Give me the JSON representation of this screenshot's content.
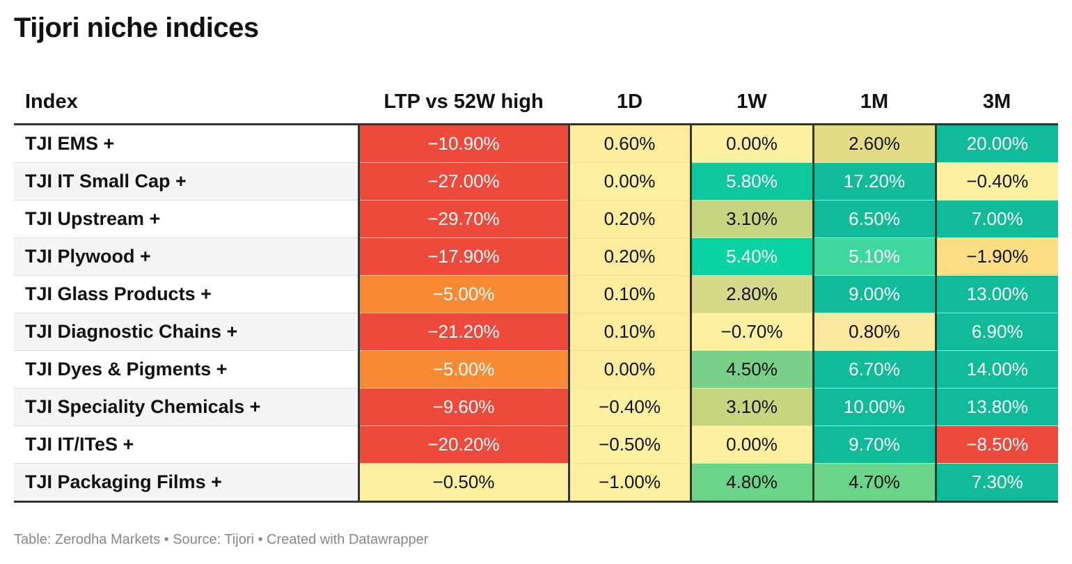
{
  "title": "Tijori niche indices",
  "footer": "Table: Zerodha Markets • Source: Tijori • Created with Datawrapper",
  "chart_data": {
    "type": "table",
    "title": "Tijori niche indices",
    "columns": [
      "Index",
      "LTP vs 52W high",
      "1D",
      "1W",
      "1M",
      "3M"
    ],
    "rows": [
      {
        "index": "TJI EMS +",
        "values": [
          "−10.90%",
          "0.60%",
          "0.00%",
          "2.60%",
          "20.00%"
        ],
        "numbers": [
          -10.9,
          0.6,
          0.0,
          2.6,
          20.0
        ],
        "colors": [
          "#ee4a3c",
          "#fcec9b",
          "#fdf09e",
          "#e3dc85",
          "#10bb9a"
        ]
      },
      {
        "index": "TJI IT Small Cap +",
        "values": [
          "−27.00%",
          "0.00%",
          "5.80%",
          "17.20%",
          "−0.40%"
        ],
        "numbers": [
          -27.0,
          0.0,
          5.8,
          17.2,
          -0.4
        ],
        "colors": [
          "#ee4a3c",
          "#fdf09e",
          "#0ec79c",
          "#10bb9a",
          "#fdf09e"
        ]
      },
      {
        "index": "TJI Upstream +",
        "values": [
          "−29.70%",
          "0.20%",
          "3.10%",
          "6.50%",
          "7.00%"
        ],
        "numbers": [
          -29.7,
          0.2,
          3.1,
          6.5,
          7.0
        ],
        "colors": [
          "#ee4a3c",
          "#fcec9b",
          "#c5d67e",
          "#10bb9a",
          "#10bb9a"
        ]
      },
      {
        "index": "TJI Plywood +",
        "values": [
          "−17.90%",
          "0.20%",
          "5.40%",
          "5.10%",
          "−1.90%"
        ],
        "numbers": [
          -17.9,
          0.2,
          5.4,
          5.1,
          -1.9
        ],
        "colors": [
          "#ee4a3c",
          "#fcec9b",
          "#09d3a2",
          "#3ed89e",
          "#fdde82"
        ]
      },
      {
        "index": "TJI Glass Products +",
        "values": [
          "−5.00%",
          "0.10%",
          "2.80%",
          "9.00%",
          "13.00%"
        ],
        "numbers": [
          -5.0,
          0.1,
          2.8,
          9.0,
          13.0
        ],
        "colors": [
          "#f88a33",
          "#fcec9b",
          "#d6d98a",
          "#10bb9a",
          "#10bb9a"
        ]
      },
      {
        "index": "TJI Diagnostic Chains +",
        "values": [
          "−21.20%",
          "0.10%",
          "−0.70%",
          "0.80%",
          "6.90%"
        ],
        "numbers": [
          -21.2,
          0.1,
          -0.7,
          0.8,
          6.9
        ],
        "colors": [
          "#ee4a3c",
          "#fcec9b",
          "#fdf09e",
          "#fce89e",
          "#10bb9a"
        ]
      },
      {
        "index": "TJI Dyes & Pigments +",
        "values": [
          "−5.00%",
          "0.00%",
          "4.50%",
          "6.70%",
          "14.00%"
        ],
        "numbers": [
          -5.0,
          0.0,
          4.5,
          6.7,
          14.0
        ],
        "colors": [
          "#f88a33",
          "#fcec9b",
          "#79d189",
          "#10bb9a",
          "#10bb9a"
        ]
      },
      {
        "index": "TJI Speciality Chemicals +",
        "values": [
          "−9.60%",
          "−0.40%",
          "3.10%",
          "10.00%",
          "13.80%"
        ],
        "numbers": [
          -9.6,
          -0.4,
          3.1,
          10.0,
          13.8
        ],
        "colors": [
          "#ee4a3c",
          "#fdf09e",
          "#c5d67e",
          "#10bb9a",
          "#10bb9a"
        ]
      },
      {
        "index": "TJI IT/ITeS +",
        "values": [
          "−20.20%",
          "−0.50%",
          "0.00%",
          "9.70%",
          "−8.50%"
        ],
        "numbers": [
          -20.2,
          -0.5,
          0.0,
          9.7,
          -8.5
        ],
        "colors": [
          "#ee4a3c",
          "#fdf09e",
          "#fdf09e",
          "#10bb9a",
          "#ee4a3c"
        ]
      },
      {
        "index": "TJI Packaging Films +",
        "values": [
          "−0.50%",
          "−1.00%",
          "4.80%",
          "4.70%",
          "7.30%"
        ],
        "numbers": [
          -0.5,
          -1.0,
          4.8,
          4.7,
          7.3
        ],
        "colors": [
          "#fdf09e",
          "#fdf09e",
          "#6bd48b",
          "#6bd48b",
          "#10bb9a"
        ]
      }
    ]
  }
}
